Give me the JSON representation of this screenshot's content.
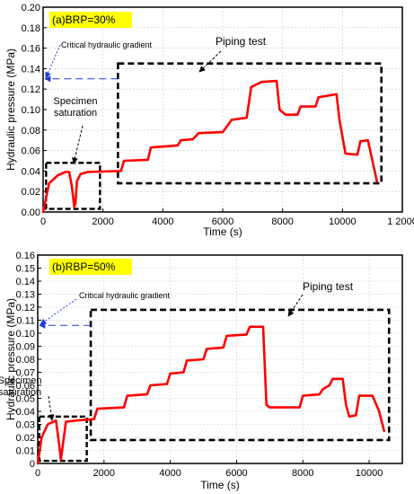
{
  "colors": {
    "series": "#ff0000",
    "critical_arrow": "#1f3bd6",
    "tag_background": "#ffff00",
    "box": "#000000"
  },
  "chart_data": [
    {
      "type": "line",
      "panel_label": "(a)BRP=30%",
      "xlabel": "Time (s)",
      "ylabel": "Hydraulic pressure (MPa)",
      "xlim": [
        0,
        12000
      ],
      "ylim": [
        0,
        0.2
      ],
      "xticks": [
        "0",
        "2000",
        "4000",
        "6000",
        "8000",
        "10000",
        "1 2000"
      ],
      "yticks": [
        "0.00",
        "0.02",
        "0.04",
        "0.06",
        "0.08",
        "0.10",
        "0.12",
        "0.14",
        "0.16",
        "0.18",
        "0.20"
      ],
      "grid": true,
      "annotations": {
        "critical": "Critical hydraulic gradient",
        "critical_value": 0.13,
        "piping": "Piping test",
        "saturation_line1": "Specimen",
        "saturation_line2": "saturation"
      },
      "piping_box": {
        "x": [
          2500,
          11300
        ],
        "y": [
          0.028,
          0.145
        ]
      },
      "saturation_box": {
        "x": [
          100,
          1900
        ],
        "y": [
          0.003,
          0.048
        ]
      },
      "series": [
        {
          "points": [
            [
              0,
              0
            ],
            [
              200,
              0.028
            ],
            [
              500,
              0.036
            ],
            [
              750,
              0.039
            ],
            [
              870,
              0.039
            ],
            [
              960,
              0.025
            ],
            [
              1040,
              0.005
            ],
            [
              1080,
              0.008
            ],
            [
              1130,
              0.03
            ],
            [
              1250,
              0.037
            ],
            [
              1500,
              0.039
            ],
            [
              2600,
              0.04
            ],
            [
              2700,
              0.05
            ],
            [
              3500,
              0.051
            ],
            [
              3600,
              0.063
            ],
            [
              4500,
              0.065
            ],
            [
              4600,
              0.07
            ],
            [
              5000,
              0.071
            ],
            [
              5200,
              0.077
            ],
            [
              6000,
              0.078
            ],
            [
              6300,
              0.09
            ],
            [
              6800,
              0.092
            ],
            [
              6950,
              0.122
            ],
            [
              7300,
              0.127
            ],
            [
              7800,
              0.128
            ],
            [
              7900,
              0.1
            ],
            [
              8100,
              0.095
            ],
            [
              8500,
              0.095
            ],
            [
              8600,
              0.103
            ],
            [
              9100,
              0.103
            ],
            [
              9200,
              0.112
            ],
            [
              9800,
              0.115
            ],
            [
              9900,
              0.09
            ],
            [
              10100,
              0.057
            ],
            [
              10500,
              0.056
            ],
            [
              10600,
              0.069
            ],
            [
              10850,
              0.07
            ],
            [
              11000,
              0.05
            ],
            [
              11150,
              0.03
            ]
          ]
        }
      ]
    },
    {
      "type": "line",
      "panel_label": "(b)RBP=50%",
      "xlabel": "Time (s)",
      "ylabel": "Hydraulic pressure (MPa)",
      "xlim": [
        0,
        11000
      ],
      "ylim": [
        0,
        0.16
      ],
      "xticks": [
        "0",
        "2000",
        "4000",
        "6000",
        "8000",
        "10000"
      ],
      "yticks": [
        "0",
        "0.01",
        "0.02",
        "0.03",
        "0.04",
        "0.05",
        "0.06",
        "0.07",
        "0.08",
        "0.09",
        "0.10",
        "0.11",
        "0.12",
        "0.13",
        "0.14",
        "0.15",
        "0.16"
      ],
      "grid": true,
      "annotations": {
        "critical": "Critical hydraulic gradient",
        "critical_value": 0.106,
        "piping": "Piping test",
        "saturation_line1": "Specimen",
        "saturation_line2": "saturation"
      },
      "piping_box": {
        "x": [
          1600,
          10600
        ],
        "y": [
          0.018,
          0.118
        ]
      },
      "saturation_box": {
        "x": [
          50,
          1480
        ],
        "y": [
          0.002,
          0.036
        ]
      },
      "series": [
        {
          "points": [
            [
              0,
              0
            ],
            [
              120,
              0.02
            ],
            [
              300,
              0.03
            ],
            [
              550,
              0.033
            ],
            [
              620,
              0.02
            ],
            [
              700,
              0.003
            ],
            [
              760,
              0.015
            ],
            [
              850,
              0.032
            ],
            [
              1200,
              0.033
            ],
            [
              1700,
              0.034
            ],
            [
              1800,
              0.042
            ],
            [
              2600,
              0.043
            ],
            [
              2700,
              0.052
            ],
            [
              3300,
              0.053
            ],
            [
              3400,
              0.06
            ],
            [
              3900,
              0.061
            ],
            [
              4000,
              0.069
            ],
            [
              4400,
              0.07
            ],
            [
              4500,
              0.079
            ],
            [
              5000,
              0.08
            ],
            [
              5100,
              0.088
            ],
            [
              5600,
              0.089
            ],
            [
              5700,
              0.098
            ],
            [
              6300,
              0.099
            ],
            [
              6400,
              0.105
            ],
            [
              6800,
              0.105
            ],
            [
              6900,
              0.045
            ],
            [
              7000,
              0.043
            ],
            [
              7900,
              0.043
            ],
            [
              8000,
              0.052
            ],
            [
              8500,
              0.053
            ],
            [
              8600,
              0.057
            ],
            [
              8800,
              0.06
            ],
            [
              8900,
              0.065
            ],
            [
              9200,
              0.065
            ],
            [
              9300,
              0.045
            ],
            [
              9400,
              0.036
            ],
            [
              9600,
              0.037
            ],
            [
              9700,
              0.052
            ],
            [
              10100,
              0.052
            ],
            [
              10300,
              0.04
            ],
            [
              10450,
              0.025
            ]
          ]
        }
      ]
    }
  ]
}
